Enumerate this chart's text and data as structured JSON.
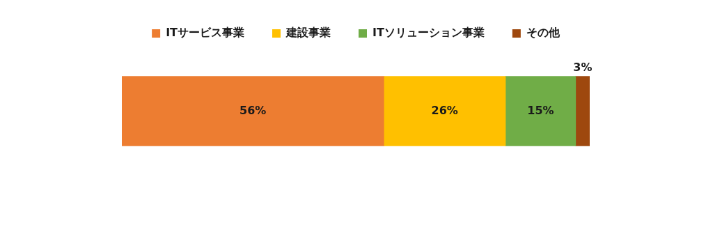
{
  "chart_data": {
    "type": "bar",
    "orientation": "horizontal",
    "stacked": true,
    "legend": "top",
    "categories": [
      null
    ],
    "series": [
      {
        "name": "ITサービス事業",
        "color": "#ed7d31",
        "values": [
          56
        ],
        "value_labels": [
          "56%"
        ]
      },
      {
        "name": "建設事業",
        "color": "#ffc000",
        "values": [
          26
        ],
        "value_labels": [
          "26%"
        ]
      },
      {
        "name": "ITソリューション事業",
        "color": "#70ad47",
        "values": [
          15
        ],
        "value_labels": [
          "15%"
        ]
      },
      {
        "name": "その他",
        "color": "#9e480e",
        "values": [
          3
        ],
        "value_labels": [
          "3%"
        ]
      }
    ]
  }
}
